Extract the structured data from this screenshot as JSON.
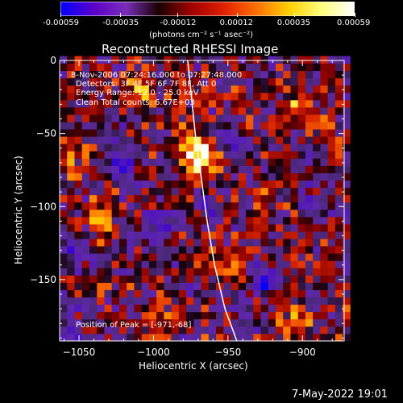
{
  "colorbar": {
    "ticks": [
      "-0.00059",
      "-0.00035",
      "-0.00012",
      "0.00012",
      "0.00035",
      "0.00059"
    ],
    "tick_values": [
      -0.00059,
      -0.00035,
      -0.00012,
      0.00012,
      0.00035,
      0.00059
    ],
    "unit": "(photons cm⁻² s⁻¹ asec⁻²)",
    "gradient": [
      "#0000ff",
      "#5a00c8",
      "#7a2dbb",
      "#1a0000",
      "#a00000",
      "#e02000",
      "#ff7000",
      "#ffd000",
      "#ffff80",
      "#ffffff"
    ]
  },
  "chart_data": {
    "type": "heatmap",
    "title": "Reconstructed RHESSI Image",
    "xlabel": "Heliocentric X (arcsec)",
    "ylabel": "Heliocentric Y (arcsec)",
    "xlim": [
      -1063,
      -872
    ],
    "ylim": [
      -192,
      0
    ],
    "xticks": [
      -1050,
      -1000,
      -950,
      -900
    ],
    "yticks": [
      0,
      -50,
      -100,
      -150
    ],
    "peak": [
      -971,
      -68
    ],
    "limb_points": [
      [
        -977,
        0
      ],
      [
        -975,
        -20
      ],
      [
        -972,
        -50
      ],
      [
        -968,
        -80
      ],
      [
        -964,
        -110
      ],
      [
        -959,
        -140
      ],
      [
        -952,
        -170
      ],
      [
        -944,
        -192
      ]
    ],
    "sources": [
      {
        "x": -970,
        "y": -65,
        "r": 14,
        "amp": 1.0
      },
      {
        "x": -1035,
        "y": -110,
        "r": 10,
        "amp": 0.75
      },
      {
        "x": -1055,
        "y": -70,
        "r": 8,
        "amp": 0.55
      },
      {
        "x": -1010,
        "y": -20,
        "r": 12,
        "amp": 0.5
      },
      {
        "x": -985,
        "y": -40,
        "r": 10,
        "amp": 0.45
      },
      {
        "x": -905,
        "y": -30,
        "r": 10,
        "amp": 0.5
      },
      {
        "x": -885,
        "y": -50,
        "r": 8,
        "amp": 0.45
      },
      {
        "x": -950,
        "y": -140,
        "r": 10,
        "amp": 0.45
      },
      {
        "x": -1000,
        "y": -180,
        "r": 12,
        "amp": 0.4
      },
      {
        "x": -905,
        "y": -180,
        "r": 10,
        "amp": 0.45
      },
      {
        "x": -1045,
        "y": -155,
        "r": 8,
        "amp": 0.35
      },
      {
        "x": -925,
        "y": -90,
        "r": 10,
        "amp": 0.35
      },
      {
        "x": -885,
        "y": -140,
        "r": 8,
        "amp": 0.4
      }
    ],
    "sinks": [
      {
        "x": -1020,
        "y": -70,
        "r": 10,
        "amp": 0.6
      },
      {
        "x": -925,
        "y": -150,
        "r": 10,
        "amp": 0.7
      },
      {
        "x": -995,
        "y": -115,
        "r": 12,
        "amp": 0.55
      },
      {
        "x": -1050,
        "y": -130,
        "r": 10,
        "amp": 0.5
      },
      {
        "x": -945,
        "y": -55,
        "r": 10,
        "amp": 0.45
      },
      {
        "x": -890,
        "y": -100,
        "r": 10,
        "amp": 0.5
      },
      {
        "x": -1055,
        "y": -185,
        "r": 10,
        "amp": 0.5
      },
      {
        "x": -960,
        "y": -100,
        "r": 8,
        "amp": 0.35
      }
    ]
  },
  "annotations": {
    "time_range": "8-Nov-2006 07:24:16.000 to 07:27:48.000",
    "detectors": "Detectors: 3F 4F 5F 6F 7F 8F, Att 0",
    "energy_range": "Energy Range: 12.0 - 25.0 keV",
    "method_counts": "Clean    Total counts: 6.67E+03",
    "peak_position": "Position of Peak = [-971,-68]"
  },
  "timestamp": "7-May-2022 19:01"
}
